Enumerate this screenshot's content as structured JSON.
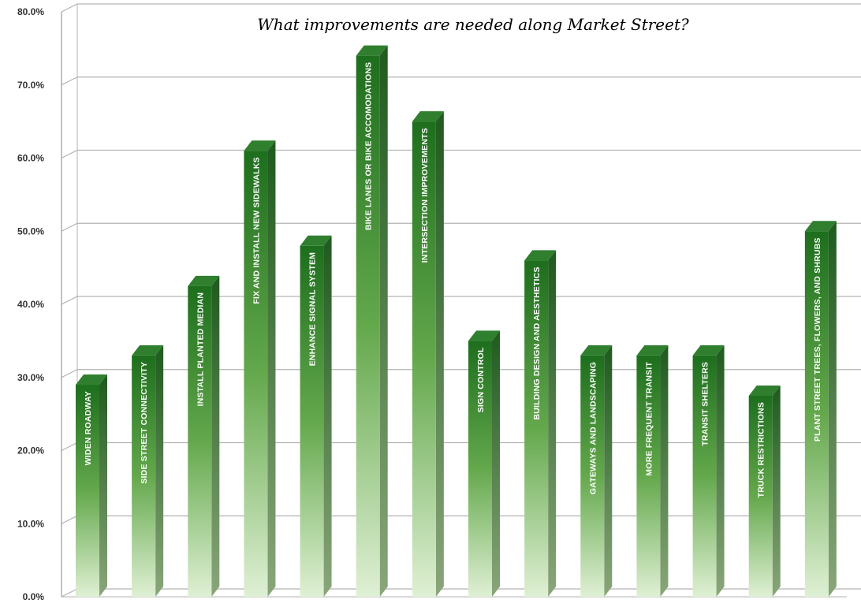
{
  "chart_data": {
    "type": "bar",
    "title": "What improvements are needed along Market Street?",
    "xlabel": "",
    "ylabel": "",
    "ylim": [
      0,
      80
    ],
    "y_ticks": [
      "0.0%",
      "10.0%",
      "20.0%",
      "30.0%",
      "40.0%",
      "50.0%",
      "60.0%",
      "70.0%",
      "80.0%"
    ],
    "grid": true,
    "legend": "none",
    "categories": [
      "Widen roadway",
      "Side street connectivity",
      "Install planted median",
      "Fix and install new sidewalks",
      "Enhance signal system",
      "Bike lanes or bike accomodations",
      "Intersection improvements",
      "Sign control",
      "Building design and aesthetics",
      "Gateways and landscaping",
      "More frequent transit",
      "Transit shelters",
      "Truck restrictions",
      "Plant street trees, flowers, and shrubs"
    ],
    "values": [
      29.0,
      33.0,
      42.5,
      61.0,
      48.0,
      74.0,
      65.0,
      35.0,
      46.0,
      33.0,
      33.0,
      33.0,
      27.5,
      50.0
    ],
    "colors": {
      "bar_top": "#1d6e1d",
      "bar_bottom": "#dff0d4",
      "bar_side": "#1f5a1f",
      "bar_side_light": "#8aa67a",
      "bar_cap": "#2f7f2f",
      "grid": "#b3b3b3",
      "axis": "#9a9a9a"
    }
  }
}
